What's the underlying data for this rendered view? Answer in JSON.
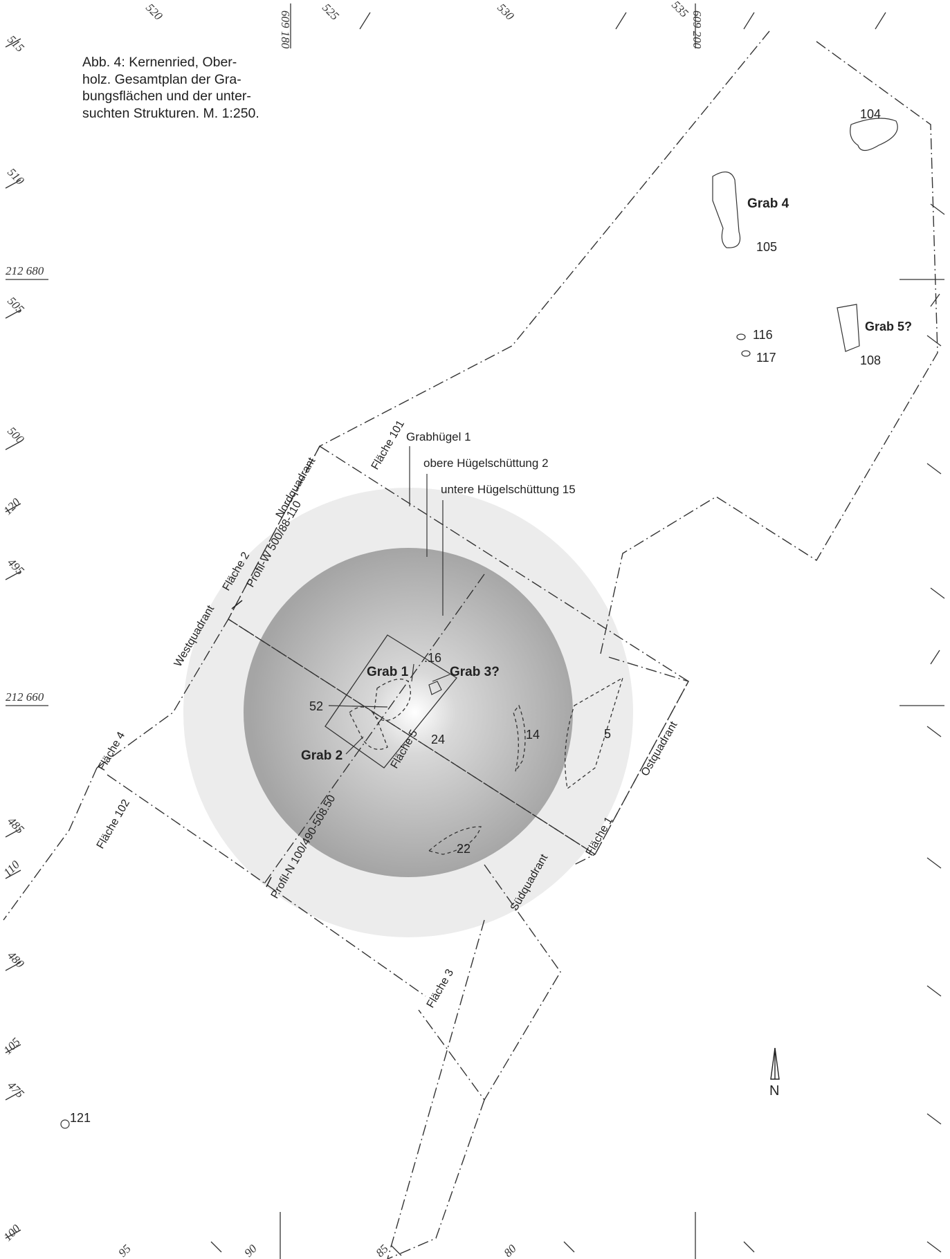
{
  "caption": "Abb. 4: Kernenried, Ober-holz. Gesamtplan der Gra-bungsflächen und der unter-suchten Strukturen. M. 1:250.",
  "caption_lines": [
    "Abb. 4: Kernenried, Ober-",
    "holz. Gesamtplan der Gra-",
    "bungsflächen und der unter-",
    "suchten Strukturen. M. 1:250."
  ],
  "north_label": "N",
  "mound": {
    "outer": "Grabhügel 1",
    "middle": "obere Hügelschüttung 2",
    "inner": "untere Hügelschüttung 15"
  },
  "features": {
    "grab1": "Grab 1",
    "grab2": "Grab 2",
    "grab3": "Grab 3?",
    "grab4": "Grab 4",
    "grab5": "Grab 5?",
    "f104": "104",
    "f105": "105",
    "f108": "108",
    "f116": "116",
    "f117": "117",
    "f121": "121",
    "f16": ".16",
    "f52": "52",
    "f24": "24",
    "f14": "14",
    "f5": "5",
    "f22": "22"
  },
  "areas": {
    "flaeche1": "Fläche 1",
    "flaeche2": "Fläche 2",
    "flaeche3": "Fläche 3",
    "flaeche4": "Fläche 4",
    "flaeche5": "Fläche 5",
    "flaeche101": "Fläche 101",
    "flaeche102": "Fläche 102",
    "nordquadrant": "Nordquadrant",
    "westquadrant": "Westquadrant",
    "ostquadrant": "Ostquadrant",
    "suedquadrant": "Südquadrant",
    "profil_w": "Profil-W 500/88-110",
    "profil_n": "Profil-N 100/490-508.50"
  },
  "grid_top": [
    "520",
    "609 180",
    "525",
    "530",
    "535",
    "609 200"
  ],
  "grid_left": [
    "515",
    "510",
    "212 680",
    "505",
    "500",
    "120",
    "495",
    "212 660",
    "485",
    "110",
    "480",
    "105",
    "475",
    "100"
  ],
  "grid_bottom": [
    "95",
    "90",
    "85",
    "80"
  ],
  "colors": {
    "mound_outer": "#ececec",
    "mound_inner": "#a9a9a9",
    "lines": "#333333"
  }
}
